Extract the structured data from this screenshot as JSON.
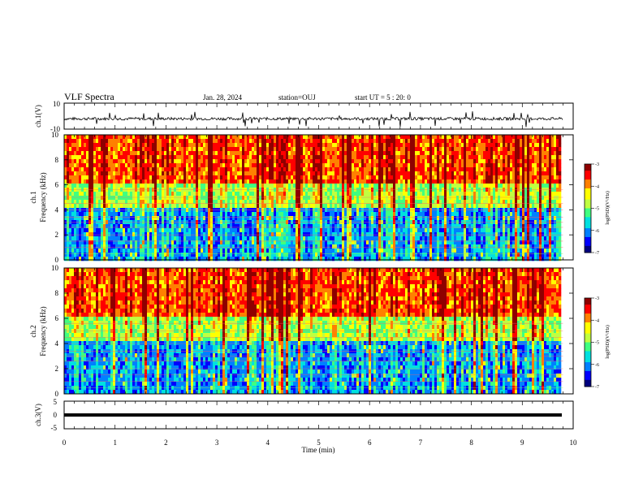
{
  "header": {
    "title": "VLF Spectra",
    "date": "Jan. 28, 2024",
    "station": "station=OUJ",
    "start": "start  UT =   5 : 20: 0"
  },
  "colors": {
    "colormap": [
      "#00007f",
      "#0000ff",
      "#0080ff",
      "#00e0e0",
      "#40ff80",
      "#c0ff40",
      "#ffff00",
      "#ff8000",
      "#ff0000",
      "#8f0000"
    ],
    "trace": "#000000",
    "frame": "#000000"
  },
  "chart_data": [
    {
      "type": "line",
      "ylabel": "ch.1(V)",
      "ylim": [
        -10,
        10
      ],
      "yticks": [
        "10",
        "-10"
      ],
      "xlim": [
        0,
        10
      ],
      "description_values": "noisy voltage trace around -2 V with occasional spikes",
      "x": [
        0,
        1,
        2,
        3,
        4,
        5,
        6,
        7,
        8,
        9,
        9.8
      ],
      "y": [
        -2,
        -2,
        -2,
        -2,
        -2,
        -2,
        -2,
        -2,
        -2,
        -2,
        -2
      ]
    },
    {
      "type": "heatmap",
      "ylabel": "ch.1\nFrequency (kHz)",
      "ylim": [
        0,
        10
      ],
      "yticks": [
        "0",
        "2",
        "4",
        "6",
        "8",
        "10"
      ],
      "xlim": [
        0,
        10
      ],
      "colorbar": {
        "label": "log(PSD)(V²/Hz)",
        "ticks": [
          "-3",
          "-4",
          "-5",
          "-6",
          "-7"
        ],
        "range": [
          -7,
          -3
        ]
      }
    },
    {
      "type": "heatmap",
      "ylabel": "ch.2\nFrequency (kHz)",
      "ylim": [
        0,
        10
      ],
      "yticks": [
        "0",
        "2",
        "4",
        "6",
        "8",
        "10"
      ],
      "xlim": [
        0,
        10
      ],
      "colorbar": {
        "label": "log(PSD)(V²/Hz)",
        "ticks": [
          "-3",
          "-4",
          "-5",
          "-6",
          "-7"
        ],
        "range": [
          -7,
          -3
        ]
      }
    },
    {
      "type": "line",
      "ylabel": "ch.3(V)",
      "ylim": [
        -5,
        5
      ],
      "yticks": [
        "5",
        "0",
        "-5"
      ],
      "xlim": [
        0,
        10
      ],
      "x": [
        0,
        9.8
      ],
      "y": [
        0,
        0
      ]
    }
  ],
  "xaxis": {
    "label": "Time (min)",
    "ticks": [
      "0",
      "1",
      "2",
      "3",
      "4",
      "5",
      "6",
      "7",
      "8",
      "9",
      "10"
    ]
  }
}
